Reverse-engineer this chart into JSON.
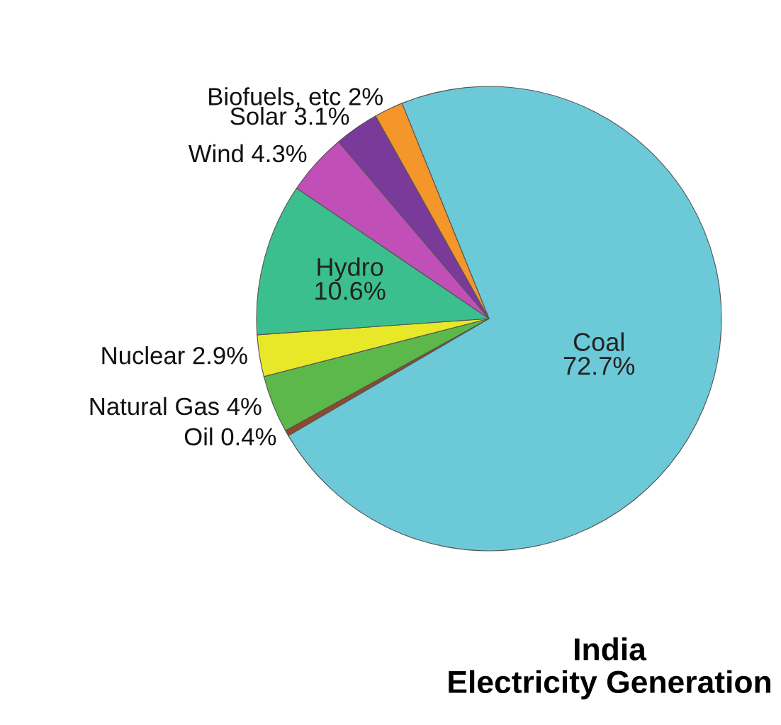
{
  "chart_data": {
    "type": "pie",
    "title": "India\nElectricity Generation",
    "categories": [
      "Coal",
      "Oil",
      "Natural Gas",
      "Nuclear",
      "Hydro",
      "Wind",
      "Solar",
      "Biofuels, etc"
    ],
    "values": [
      72.7,
      0.4,
      4,
      2.9,
      10.6,
      4.3,
      3.1,
      2
    ],
    "colors": [
      "#6cc9d8",
      "#8b4a2b",
      "#5cb84a",
      "#e8e828",
      "#3cbf8f",
      "#c050b8",
      "#7a3a9a",
      "#f5962a"
    ],
    "value_labels": [
      "72.7%",
      "0.4%",
      "4%",
      "2.9%",
      "10.6%",
      "4.3%",
      "3.1%",
      "2%"
    ]
  }
}
